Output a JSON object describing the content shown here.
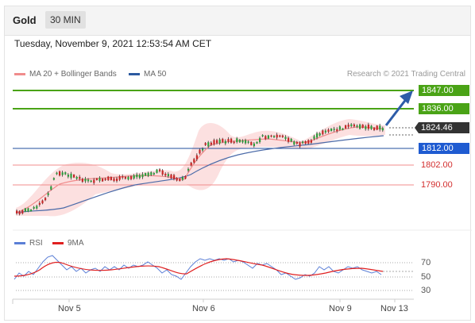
{
  "header": {
    "instrument": "Gold",
    "interval": "30 MIN"
  },
  "datetime": "Tuesday, November 9, 2021 12:53:54 AM CET",
  "legend": {
    "ma20_bb": "MA 20 + Bollinger Bands",
    "ma50": "MA 50",
    "research": "Research © 2021 Trading Central",
    "colors": {
      "ma20_bb": "#f08c8c",
      "ma50": "#2c5aa0"
    }
  },
  "levels": [
    {
      "label": "1847.00",
      "style": "green",
      "color": "#4aa316"
    },
    {
      "label": "1836.00",
      "style": "green",
      "color": "#4aa316"
    },
    {
      "label": "1824.46",
      "style": "current",
      "color": "#333333"
    },
    {
      "label": "1812.00",
      "style": "blue",
      "color": "#1f4e9c"
    },
    {
      "label": "1802.00",
      "style": "red",
      "color": "#e05050"
    },
    {
      "label": "1790.00",
      "style": "red",
      "color": "#e05050"
    }
  ],
  "rsi_legend": {
    "rsi": "RSI",
    "ma9": "9MA",
    "colors": {
      "rsi": "#5b7fd6",
      "ma9": "#e02020"
    }
  },
  "rsi_levels": [
    "70",
    "50",
    "30"
  ],
  "x_axis": [
    "Nov 5",
    "Nov 6",
    "Nov 9",
    "Nov 13"
  ],
  "icons": {
    "arrow": "up-right-arrow-icon"
  }
}
